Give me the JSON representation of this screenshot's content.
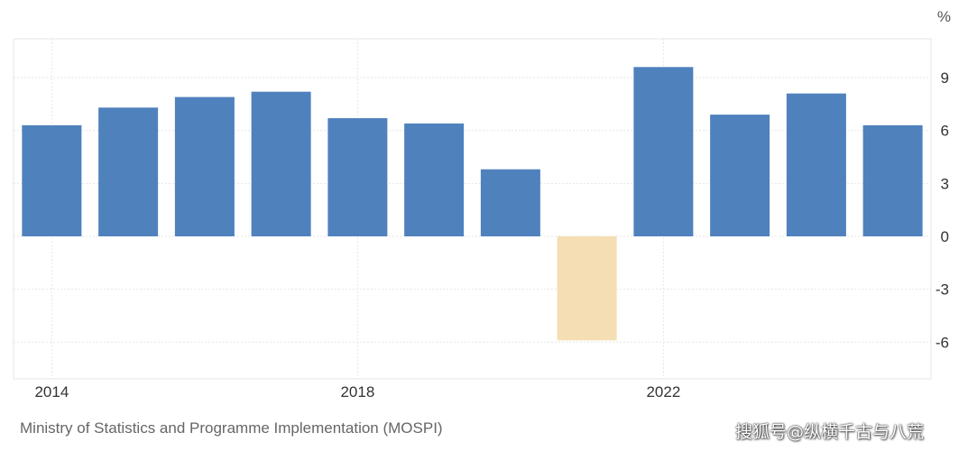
{
  "chart_data": {
    "type": "bar",
    "title": "",
    "xlabel": "",
    "ylabel": "",
    "unit": "%",
    "categories": [
      "2014",
      "2015",
      "2016",
      "2017",
      "2018",
      "2019",
      "2020",
      "2021",
      "2022",
      "2023",
      "2024",
      "2025"
    ],
    "values": [
      6.3,
      7.3,
      7.9,
      8.2,
      6.7,
      6.4,
      3.8,
      -5.9,
      9.6,
      6.9,
      8.1,
      6.3
    ],
    "x_tick_labels": [
      "2014",
      "2018",
      "2022"
    ],
    "y_ticks": [
      9,
      6,
      3,
      0,
      -3,
      -6
    ],
    "ylim": [
      -8,
      11
    ],
    "grid": true,
    "colors": {
      "positive": "#4f81bd",
      "negative": "#f5deb3",
      "grid": "#e6e6e6"
    }
  },
  "source": "Ministry of Statistics and Programme Implementation (MOSPI)",
  "watermark": "搜狐号@纵横千古与八荒"
}
